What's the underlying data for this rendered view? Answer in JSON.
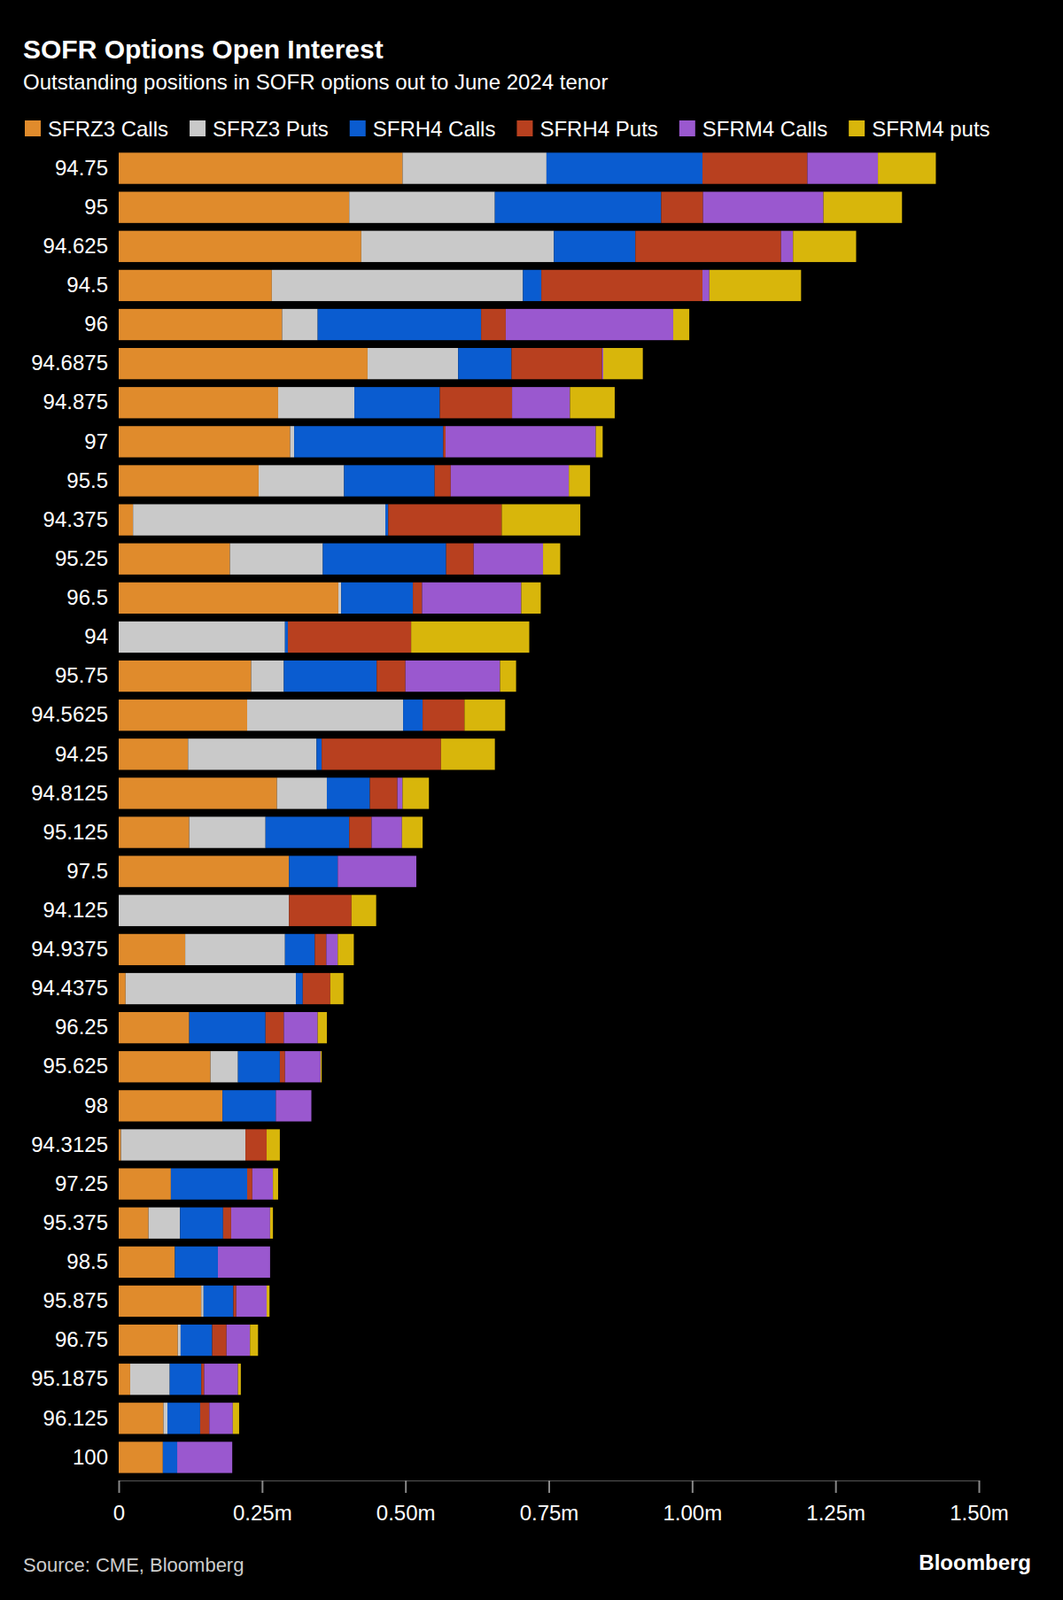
{
  "chart_data": {
    "type": "bar",
    "orientation": "horizontal",
    "stacked": true,
    "title": "SOFR Options Open Interest",
    "subtitle": "Outstanding positions in SOFR options out to June 2024 tenor",
    "source": "Source: CME, Bloomberg",
    "brand": "Bloomberg",
    "legend": "top",
    "grid": false,
    "categories": [
      "94.75",
      "95",
      "94.625",
      "94.5",
      "96",
      "94.6875",
      "94.875",
      "97",
      "95.5",
      "94.375",
      "95.25",
      "96.5",
      "94",
      "95.75",
      "94.5625",
      "94.25",
      "94.8125",
      "95.125",
      "97.5",
      "94.125",
      "94.9375",
      "94.4375",
      "96.25",
      "95.625",
      "98",
      "94.3125",
      "97.25",
      "95.375",
      "98.5",
      "95.875",
      "96.75",
      "95.1875",
      "96.125",
      "100"
    ],
    "xlim": [
      0,
      1.5
    ],
    "xticks": [
      0,
      {
        "value": 0.25,
        "label": "0.25m"
      },
      {
        "value": 0.5,
        "label": "0.50m"
      },
      {
        "value": 0.75,
        "label": "0.75m"
      },
      {
        "value": 1.0,
        "label": "1.00m"
      },
      {
        "value": 1.25,
        "label": "1.25m"
      },
      {
        "value": 1.5,
        "label": "1.50m"
      }
    ],
    "series": [
      {
        "name": "SFRZ3 Calls",
        "color": "#e08b2c",
        "values": [
          0.495,
          0.402,
          0.423,
          0.267,
          0.285,
          0.434,
          0.278,
          0.299,
          0.244,
          0.025,
          0.194,
          0.383,
          0,
          0.231,
          0.224,
          0.121,
          0.276,
          0.123,
          0.297,
          0,
          0.116,
          0.012,
          0.123,
          0.16,
          0.181,
          0.004,
          0.091,
          0.052,
          0.098,
          0.144,
          0.103,
          0.02,
          0.078,
          0.077
        ]
      },
      {
        "name": "SFRZ3 Puts",
        "color": "#c9c9c9",
        "values": [
          0.251,
          0.254,
          0.336,
          0.438,
          0.062,
          0.158,
          0.133,
          0.007,
          0.149,
          0.44,
          0.162,
          0.005,
          0.29,
          0.057,
          0.272,
          0.224,
          0.087,
          0.133,
          0,
          0.297,
          0.174,
          0.297,
          0,
          0.048,
          0,
          0.217,
          0,
          0.055,
          0,
          0.004,
          0.005,
          0.069,
          0.007,
          0
        ]
      },
      {
        "name": "SFRH4 Calls",
        "color": "#0a5cd0",
        "values": [
          0.272,
          0.29,
          0.142,
          0.032,
          0.285,
          0.093,
          0.149,
          0.26,
          0.158,
          0.005,
          0.215,
          0.125,
          0.005,
          0.162,
          0.034,
          0.009,
          0.075,
          0.146,
          0.085,
          0,
          0.052,
          0.012,
          0.133,
          0.073,
          0.093,
          0,
          0.133,
          0.075,
          0.075,
          0.052,
          0.055,
          0.055,
          0.057,
          0.025
        ]
      },
      {
        "name": "SFRH4 Puts",
        "color": "#b8401f",
        "values": [
          0.183,
          0.073,
          0.254,
          0.281,
          0.043,
          0.158,
          0.126,
          0.004,
          0.028,
          0.198,
          0.048,
          0.016,
          0.215,
          0.05,
          0.073,
          0.208,
          0.048,
          0.039,
          0,
          0.109,
          0.02,
          0.048,
          0.032,
          0.009,
          0,
          0.037,
          0.009,
          0.014,
          0,
          0.005,
          0.025,
          0.005,
          0.016,
          0
        ]
      },
      {
        "name": "SFRM4 Calls",
        "color": "#9a58cf",
        "values": [
          0.123,
          0.21,
          0.021,
          0.012,
          0.292,
          0.002,
          0.101,
          0.262,
          0.206,
          0,
          0.121,
          0.173,
          0,
          0.165,
          0,
          0,
          0.009,
          0.053,
          0.137,
          0,
          0.02,
          0,
          0.059,
          0.062,
          0.062,
          0,
          0.036,
          0.068,
          0.091,
          0.053,
          0.041,
          0.059,
          0.041,
          0.096
        ]
      },
      {
        "name": "SFRM4 puts",
        "color": "#d8b60b",
        "values": [
          0.101,
          0.137,
          0.11,
          0.16,
          0.028,
          0.069,
          0.078,
          0.012,
          0.037,
          0.137,
          0.03,
          0.034,
          0.206,
          0.028,
          0.071,
          0.094,
          0.046,
          0.036,
          0,
          0.043,
          0.028,
          0.023,
          0.016,
          0.002,
          0,
          0.023,
          0.009,
          0.005,
          0,
          0.005,
          0.014,
          0.005,
          0.011,
          0
        ]
      }
    ]
  }
}
